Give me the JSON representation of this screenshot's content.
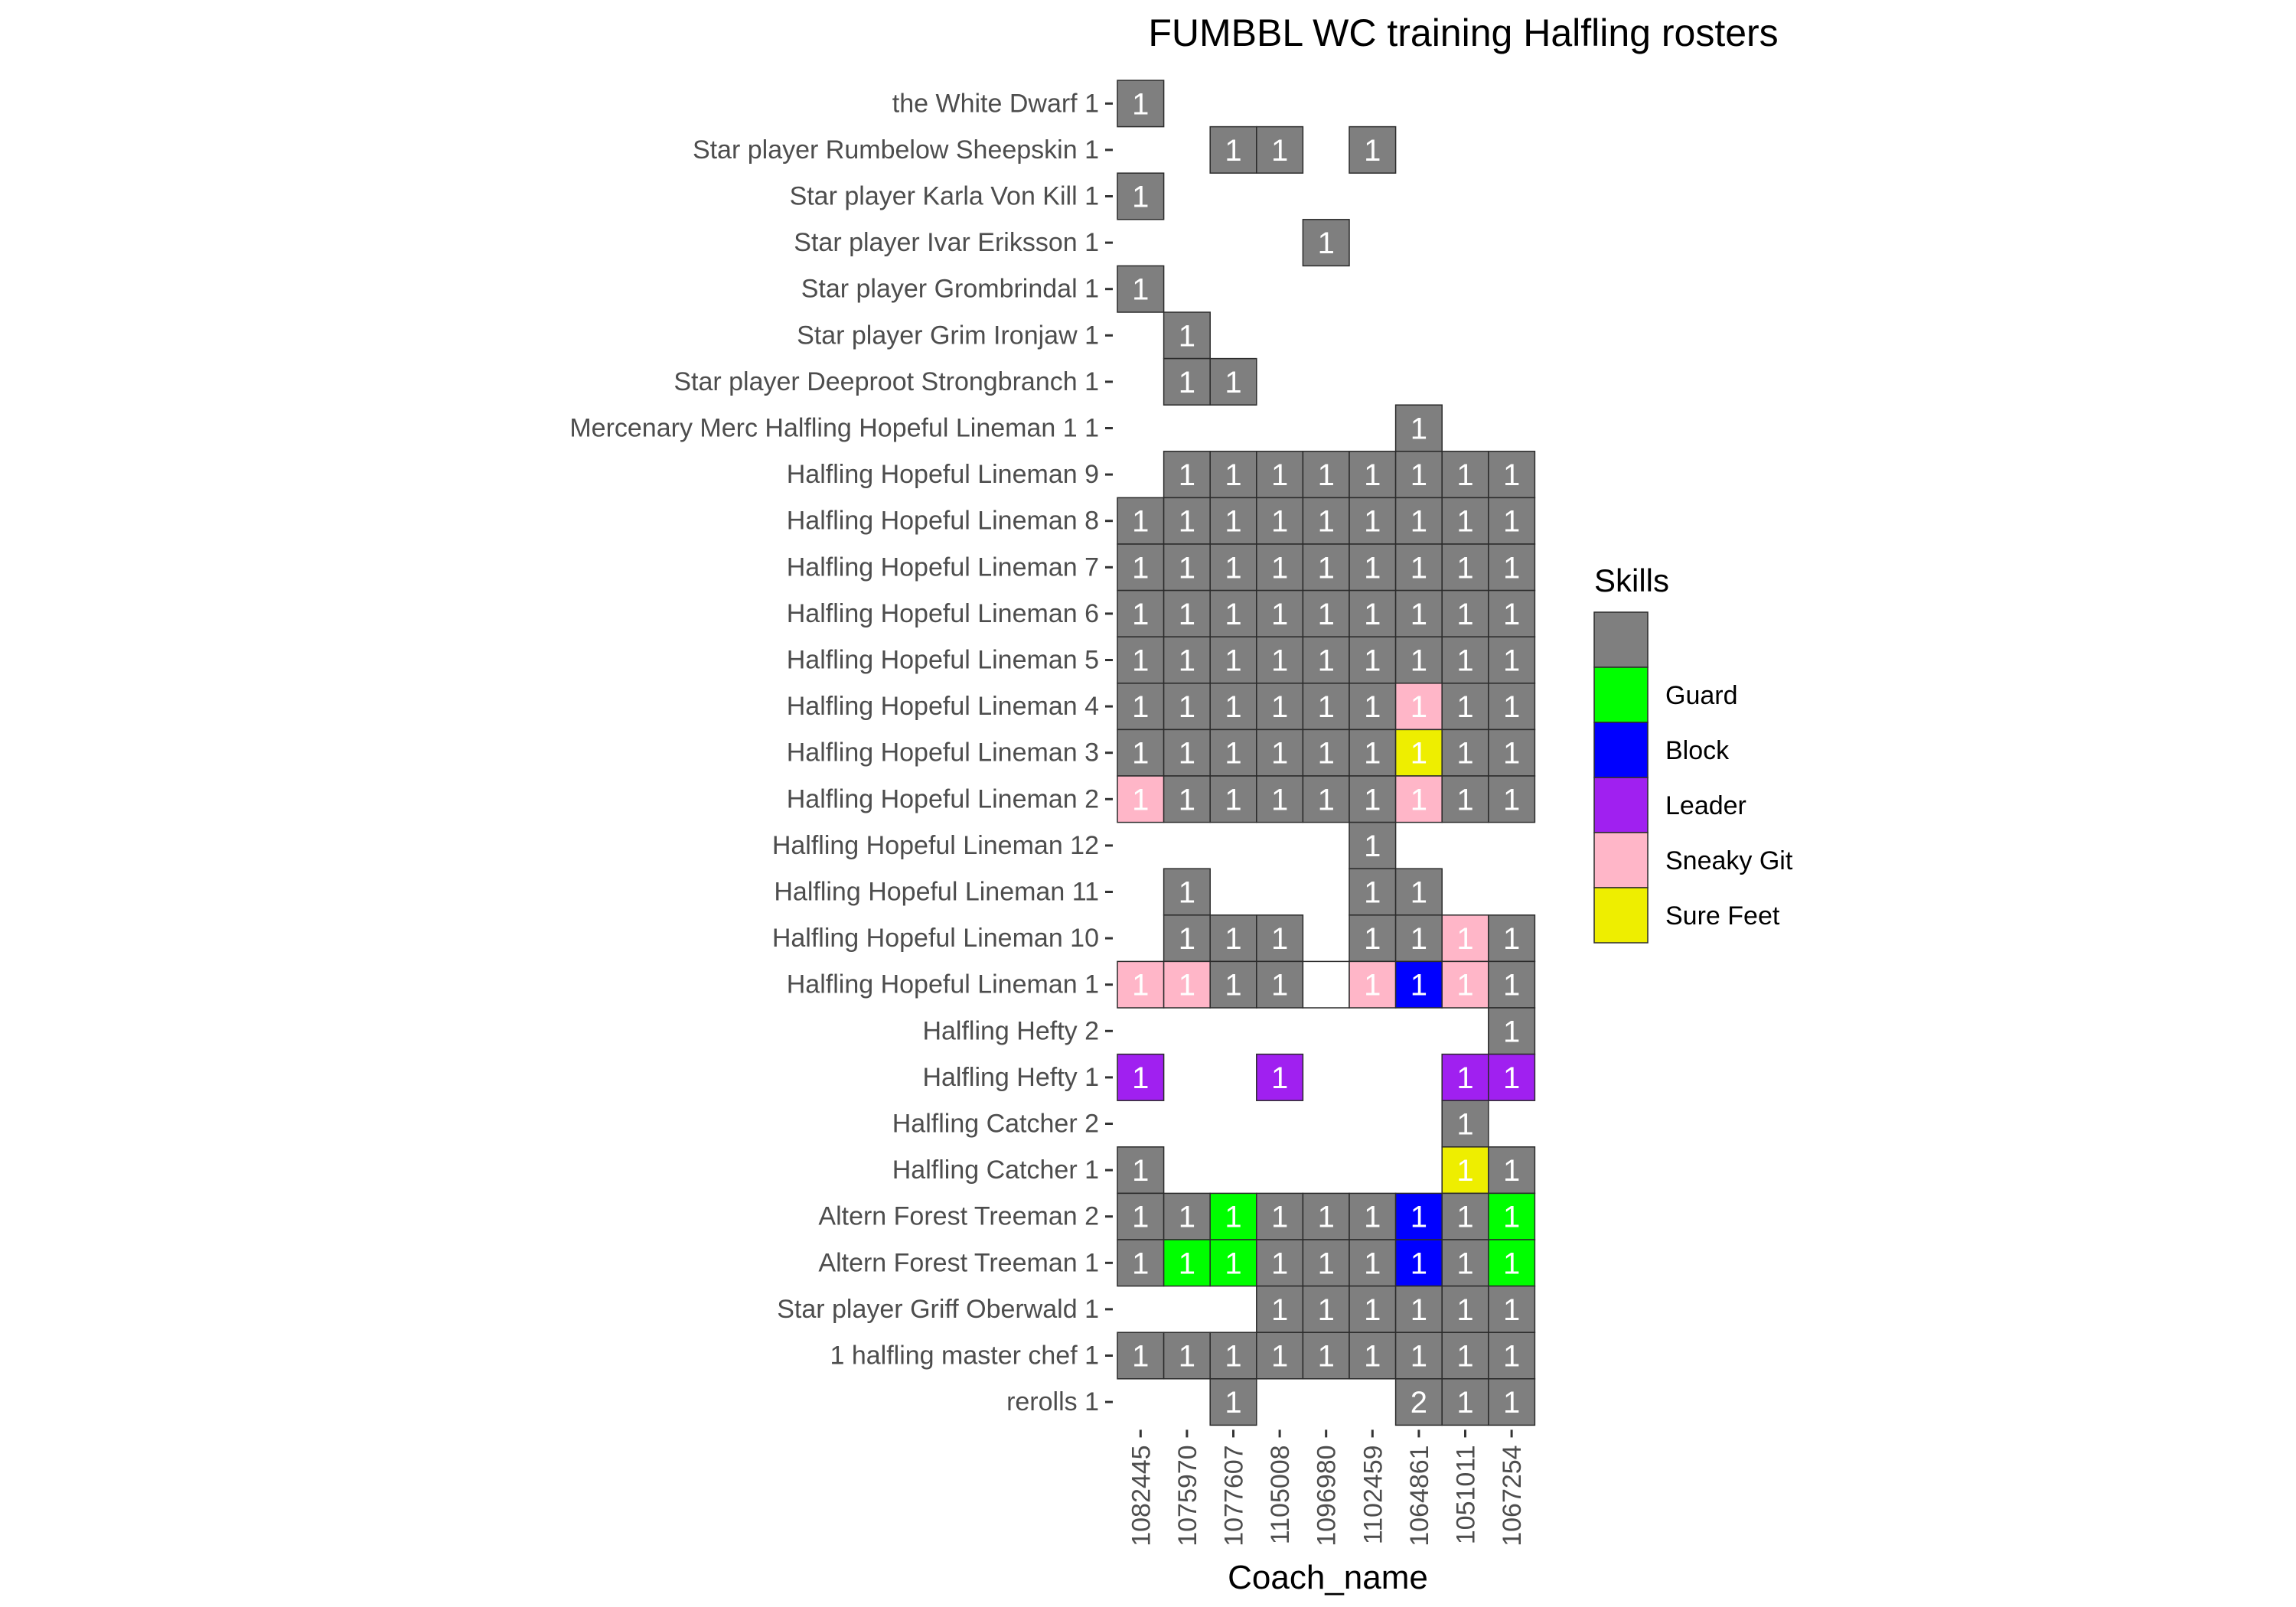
{
  "chart_data": {
    "type": "heatmap",
    "title": "FUMBBL WC training Halfling rosters",
    "xlabel": "Coach_name",
    "ylabel": "",
    "x_categories": [
      "1082445",
      "1075970",
      "1077607",
      "1105008",
      "1096980",
      "1102459",
      "1064861",
      "1051011",
      "1067254"
    ],
    "y_categories": [
      "the White Dwarf 1",
      "Star player Rumbelow Sheepskin 1",
      "Star player Karla Von Kill 1",
      "Star player Ivar Eriksson 1",
      "Star player Grombrindal 1",
      "Star player Grim Ironjaw 1",
      "Star player Deeproot Strongbranch 1",
      "Mercenary Merc Halfling Hopeful Lineman 1 1",
      "Halfling Hopeful Lineman 9",
      "Halfling Hopeful Lineman 8",
      "Halfling Hopeful Lineman 7",
      "Halfling Hopeful Lineman 6",
      "Halfling Hopeful Lineman 5",
      "Halfling Hopeful Lineman 4",
      "Halfling Hopeful Lineman 3",
      "Halfling Hopeful Lineman 2",
      "Halfling Hopeful Lineman 12",
      "Halfling Hopeful Lineman 11",
      "Halfling Hopeful Lineman 10",
      "Halfling Hopeful Lineman 1",
      "Halfling Hefty 2",
      "Halfling Hefty 1",
      "Halfling Catcher 2",
      "Halfling Catcher 1",
      "Altern Forest Treeman 2",
      "Altern Forest Treeman 1",
      "Star player Griff Oberwald 1",
      "1 halfling master chef 1",
      "rerolls 1"
    ],
    "legend": {
      "title": "Skills",
      "placement": "right",
      "entries": [
        {
          "key": "none",
          "label": "",
          "color": "#7f7f7f"
        },
        {
          "key": "guard",
          "label": "Guard",
          "color": "#00ff00"
        },
        {
          "key": "block",
          "label": "Block",
          "color": "#0000ff"
        },
        {
          "key": "leader",
          "label": "Leader",
          "color": "#a020f0"
        },
        {
          "key": "sneaky",
          "label": "Sneaky Git",
          "color": "#ffb6c8"
        },
        {
          "key": "surefeet",
          "label": "Sure Feet",
          "color": "#eeee00"
        }
      ]
    },
    "grid": false,
    "cells": [
      {
        "y": 0,
        "x": 0,
        "value": "1",
        "skill": "none"
      },
      {
        "y": 1,
        "x": 2,
        "value": "1",
        "skill": "none"
      },
      {
        "y": 1,
        "x": 3,
        "value": "1",
        "skill": "none"
      },
      {
        "y": 1,
        "x": 5,
        "value": "1",
        "skill": "none"
      },
      {
        "y": 2,
        "x": 0,
        "value": "1",
        "skill": "none"
      },
      {
        "y": 3,
        "x": 4,
        "value": "1",
        "skill": "none"
      },
      {
        "y": 4,
        "x": 0,
        "value": "1",
        "skill": "none"
      },
      {
        "y": 5,
        "x": 1,
        "value": "1",
        "skill": "none"
      },
      {
        "y": 6,
        "x": 1,
        "value": "1",
        "skill": "none"
      },
      {
        "y": 6,
        "x": 2,
        "value": "1",
        "skill": "none"
      },
      {
        "y": 7,
        "x": 6,
        "value": "1",
        "skill": "none"
      },
      {
        "y": 8,
        "x": 1,
        "value": "1",
        "skill": "none"
      },
      {
        "y": 8,
        "x": 2,
        "value": "1",
        "skill": "none"
      },
      {
        "y": 8,
        "x": 3,
        "value": "1",
        "skill": "none"
      },
      {
        "y": 8,
        "x": 4,
        "value": "1",
        "skill": "none"
      },
      {
        "y": 8,
        "x": 5,
        "value": "1",
        "skill": "none"
      },
      {
        "y": 8,
        "x": 6,
        "value": "1",
        "skill": "none"
      },
      {
        "y": 8,
        "x": 7,
        "value": "1",
        "skill": "none"
      },
      {
        "y": 8,
        "x": 8,
        "value": "1",
        "skill": "none"
      },
      {
        "y": 9,
        "x": 0,
        "value": "1",
        "skill": "none"
      },
      {
        "y": 9,
        "x": 1,
        "value": "1",
        "skill": "none"
      },
      {
        "y": 9,
        "x": 2,
        "value": "1",
        "skill": "none"
      },
      {
        "y": 9,
        "x": 3,
        "value": "1",
        "skill": "none"
      },
      {
        "y": 9,
        "x": 4,
        "value": "1",
        "skill": "none"
      },
      {
        "y": 9,
        "x": 5,
        "value": "1",
        "skill": "none"
      },
      {
        "y": 9,
        "x": 6,
        "value": "1",
        "skill": "none"
      },
      {
        "y": 9,
        "x": 7,
        "value": "1",
        "skill": "none"
      },
      {
        "y": 9,
        "x": 8,
        "value": "1",
        "skill": "none"
      },
      {
        "y": 10,
        "x": 0,
        "value": "1",
        "skill": "none"
      },
      {
        "y": 10,
        "x": 1,
        "value": "1",
        "skill": "none"
      },
      {
        "y": 10,
        "x": 2,
        "value": "1",
        "skill": "none"
      },
      {
        "y": 10,
        "x": 3,
        "value": "1",
        "skill": "none"
      },
      {
        "y": 10,
        "x": 4,
        "value": "1",
        "skill": "none"
      },
      {
        "y": 10,
        "x": 5,
        "value": "1",
        "skill": "none"
      },
      {
        "y": 10,
        "x": 6,
        "value": "1",
        "skill": "none"
      },
      {
        "y": 10,
        "x": 7,
        "value": "1",
        "skill": "none"
      },
      {
        "y": 10,
        "x": 8,
        "value": "1",
        "skill": "none"
      },
      {
        "y": 11,
        "x": 0,
        "value": "1",
        "skill": "none"
      },
      {
        "y": 11,
        "x": 1,
        "value": "1",
        "skill": "none"
      },
      {
        "y": 11,
        "x": 2,
        "value": "1",
        "skill": "none"
      },
      {
        "y": 11,
        "x": 3,
        "value": "1",
        "skill": "none"
      },
      {
        "y": 11,
        "x": 4,
        "value": "1",
        "skill": "none"
      },
      {
        "y": 11,
        "x": 5,
        "value": "1",
        "skill": "none"
      },
      {
        "y": 11,
        "x": 6,
        "value": "1",
        "skill": "none"
      },
      {
        "y": 11,
        "x": 7,
        "value": "1",
        "skill": "none"
      },
      {
        "y": 11,
        "x": 8,
        "value": "1",
        "skill": "none"
      },
      {
        "y": 12,
        "x": 0,
        "value": "1",
        "skill": "none"
      },
      {
        "y": 12,
        "x": 1,
        "value": "1",
        "skill": "none"
      },
      {
        "y": 12,
        "x": 2,
        "value": "1",
        "skill": "none"
      },
      {
        "y": 12,
        "x": 3,
        "value": "1",
        "skill": "none"
      },
      {
        "y": 12,
        "x": 4,
        "value": "1",
        "skill": "none"
      },
      {
        "y": 12,
        "x": 5,
        "value": "1",
        "skill": "none"
      },
      {
        "y": 12,
        "x": 6,
        "value": "1",
        "skill": "none"
      },
      {
        "y": 12,
        "x": 7,
        "value": "1",
        "skill": "none"
      },
      {
        "y": 12,
        "x": 8,
        "value": "1",
        "skill": "none"
      },
      {
        "y": 13,
        "x": 0,
        "value": "1",
        "skill": "none"
      },
      {
        "y": 13,
        "x": 1,
        "value": "1",
        "skill": "none"
      },
      {
        "y": 13,
        "x": 2,
        "value": "1",
        "skill": "none"
      },
      {
        "y": 13,
        "x": 3,
        "value": "1",
        "skill": "none"
      },
      {
        "y": 13,
        "x": 4,
        "value": "1",
        "skill": "none"
      },
      {
        "y": 13,
        "x": 5,
        "value": "1",
        "skill": "none"
      },
      {
        "y": 13,
        "x": 6,
        "value": "1",
        "skill": "sneaky"
      },
      {
        "y": 13,
        "x": 7,
        "value": "1",
        "skill": "none"
      },
      {
        "y": 13,
        "x": 8,
        "value": "1",
        "skill": "none"
      },
      {
        "y": 14,
        "x": 0,
        "value": "1",
        "skill": "none"
      },
      {
        "y": 14,
        "x": 1,
        "value": "1",
        "skill": "none"
      },
      {
        "y": 14,
        "x": 2,
        "value": "1",
        "skill": "none"
      },
      {
        "y": 14,
        "x": 3,
        "value": "1",
        "skill": "none"
      },
      {
        "y": 14,
        "x": 4,
        "value": "1",
        "skill": "none"
      },
      {
        "y": 14,
        "x": 5,
        "value": "1",
        "skill": "none"
      },
      {
        "y": 14,
        "x": 6,
        "value": "1",
        "skill": "surefeet"
      },
      {
        "y": 14,
        "x": 7,
        "value": "1",
        "skill": "none"
      },
      {
        "y": 14,
        "x": 8,
        "value": "1",
        "skill": "none"
      },
      {
        "y": 15,
        "x": 0,
        "value": "1",
        "skill": "sneaky"
      },
      {
        "y": 15,
        "x": 1,
        "value": "1",
        "skill": "none"
      },
      {
        "y": 15,
        "x": 2,
        "value": "1",
        "skill": "none"
      },
      {
        "y": 15,
        "x": 3,
        "value": "1",
        "skill": "none"
      },
      {
        "y": 15,
        "x": 4,
        "value": "1",
        "skill": "none"
      },
      {
        "y": 15,
        "x": 5,
        "value": "1",
        "skill": "none"
      },
      {
        "y": 15,
        "x": 6,
        "value": "1",
        "skill": "sneaky"
      },
      {
        "y": 15,
        "x": 7,
        "value": "1",
        "skill": "none"
      },
      {
        "y": 15,
        "x": 8,
        "value": "1",
        "skill": "none"
      },
      {
        "y": 16,
        "x": 5,
        "value": "1",
        "skill": "none"
      },
      {
        "y": 17,
        "x": 1,
        "value": "1",
        "skill": "none"
      },
      {
        "y": 17,
        "x": 5,
        "value": "1",
        "skill": "none"
      },
      {
        "y": 17,
        "x": 6,
        "value": "1",
        "skill": "none"
      },
      {
        "y": 18,
        "x": 1,
        "value": "1",
        "skill": "none"
      },
      {
        "y": 18,
        "x": 2,
        "value": "1",
        "skill": "none"
      },
      {
        "y": 18,
        "x": 3,
        "value": "1",
        "skill": "none"
      },
      {
        "y": 18,
        "x": 5,
        "value": "1",
        "skill": "none"
      },
      {
        "y": 18,
        "x": 6,
        "value": "1",
        "skill": "none"
      },
      {
        "y": 18,
        "x": 7,
        "value": "1",
        "skill": "sneaky"
      },
      {
        "y": 18,
        "x": 8,
        "value": "1",
        "skill": "none"
      },
      {
        "y": 19,
        "x": 0,
        "value": "1",
        "skill": "sneaky"
      },
      {
        "y": 19,
        "x": 1,
        "value": "1",
        "skill": "sneaky"
      },
      {
        "y": 19,
        "x": 2,
        "value": "1",
        "skill": "none"
      },
      {
        "y": 19,
        "x": 3,
        "value": "1",
        "skill": "none"
      },
      {
        "y": 19,
        "x": 4,
        "value": "",
        "skill": "empty"
      },
      {
        "y": 19,
        "x": 5,
        "value": "1",
        "skill": "sneaky"
      },
      {
        "y": 19,
        "x": 6,
        "value": "1",
        "skill": "block"
      },
      {
        "y": 19,
        "x": 7,
        "value": "1",
        "skill": "sneaky"
      },
      {
        "y": 19,
        "x": 8,
        "value": "1",
        "skill": "none"
      },
      {
        "y": 20,
        "x": 8,
        "value": "1",
        "skill": "none"
      },
      {
        "y": 21,
        "x": 0,
        "value": "1",
        "skill": "leader"
      },
      {
        "y": 21,
        "x": 3,
        "value": "1",
        "skill": "leader"
      },
      {
        "y": 21,
        "x": 7,
        "value": "1",
        "skill": "leader"
      },
      {
        "y": 21,
        "x": 8,
        "value": "1",
        "skill": "leader"
      },
      {
        "y": 22,
        "x": 7,
        "value": "1",
        "skill": "none"
      },
      {
        "y": 23,
        "x": 0,
        "value": "1",
        "skill": "none"
      },
      {
        "y": 23,
        "x": 7,
        "value": "1",
        "skill": "surefeet"
      },
      {
        "y": 23,
        "x": 8,
        "value": "1",
        "skill": "none"
      },
      {
        "y": 24,
        "x": 0,
        "value": "1",
        "skill": "none"
      },
      {
        "y": 24,
        "x": 1,
        "value": "1",
        "skill": "none"
      },
      {
        "y": 24,
        "x": 2,
        "value": "1",
        "skill": "guard"
      },
      {
        "y": 24,
        "x": 3,
        "value": "1",
        "skill": "none"
      },
      {
        "y": 24,
        "x": 4,
        "value": "1",
        "skill": "none"
      },
      {
        "y": 24,
        "x": 5,
        "value": "1",
        "skill": "none"
      },
      {
        "y": 24,
        "x": 6,
        "value": "1",
        "skill": "block"
      },
      {
        "y": 24,
        "x": 7,
        "value": "1",
        "skill": "none"
      },
      {
        "y": 24,
        "x": 8,
        "value": "1",
        "skill": "guard"
      },
      {
        "y": 25,
        "x": 0,
        "value": "1",
        "skill": "none"
      },
      {
        "y": 25,
        "x": 1,
        "value": "1",
        "skill": "guard"
      },
      {
        "y": 25,
        "x": 2,
        "value": "1",
        "skill": "guard"
      },
      {
        "y": 25,
        "x": 3,
        "value": "1",
        "skill": "none"
      },
      {
        "y": 25,
        "x": 4,
        "value": "1",
        "skill": "none"
      },
      {
        "y": 25,
        "x": 5,
        "value": "1",
        "skill": "none"
      },
      {
        "y": 25,
        "x": 6,
        "value": "1",
        "skill": "block"
      },
      {
        "y": 25,
        "x": 7,
        "value": "1",
        "skill": "none"
      },
      {
        "y": 25,
        "x": 8,
        "value": "1",
        "skill": "guard"
      },
      {
        "y": 26,
        "x": 3,
        "value": "1",
        "skill": "none"
      },
      {
        "y": 26,
        "x": 4,
        "value": "1",
        "skill": "none"
      },
      {
        "y": 26,
        "x": 5,
        "value": "1",
        "skill": "none"
      },
      {
        "y": 26,
        "x": 6,
        "value": "1",
        "skill": "none"
      },
      {
        "y": 26,
        "x": 7,
        "value": "1",
        "skill": "none"
      },
      {
        "y": 26,
        "x": 8,
        "value": "1",
        "skill": "none"
      },
      {
        "y": 27,
        "x": 0,
        "value": "1",
        "skill": "none"
      },
      {
        "y": 27,
        "x": 1,
        "value": "1",
        "skill": "none"
      },
      {
        "y": 27,
        "x": 2,
        "value": "1",
        "skill": "none"
      },
      {
        "y": 27,
        "x": 3,
        "value": "1",
        "skill": "none"
      },
      {
        "y": 27,
        "x": 4,
        "value": "1",
        "skill": "none"
      },
      {
        "y": 27,
        "x": 5,
        "value": "1",
        "skill": "none"
      },
      {
        "y": 27,
        "x": 6,
        "value": "1",
        "skill": "none"
      },
      {
        "y": 27,
        "x": 7,
        "value": "1",
        "skill": "none"
      },
      {
        "y": 27,
        "x": 8,
        "value": "1",
        "skill": "none"
      },
      {
        "y": 28,
        "x": 2,
        "value": "1",
        "skill": "none"
      },
      {
        "y": 28,
        "x": 6,
        "value": "2",
        "skill": "none"
      },
      {
        "y": 28,
        "x": 7,
        "value": "1",
        "skill": "none"
      },
      {
        "y": 28,
        "x": 8,
        "value": "1",
        "skill": "none"
      }
    ]
  }
}
